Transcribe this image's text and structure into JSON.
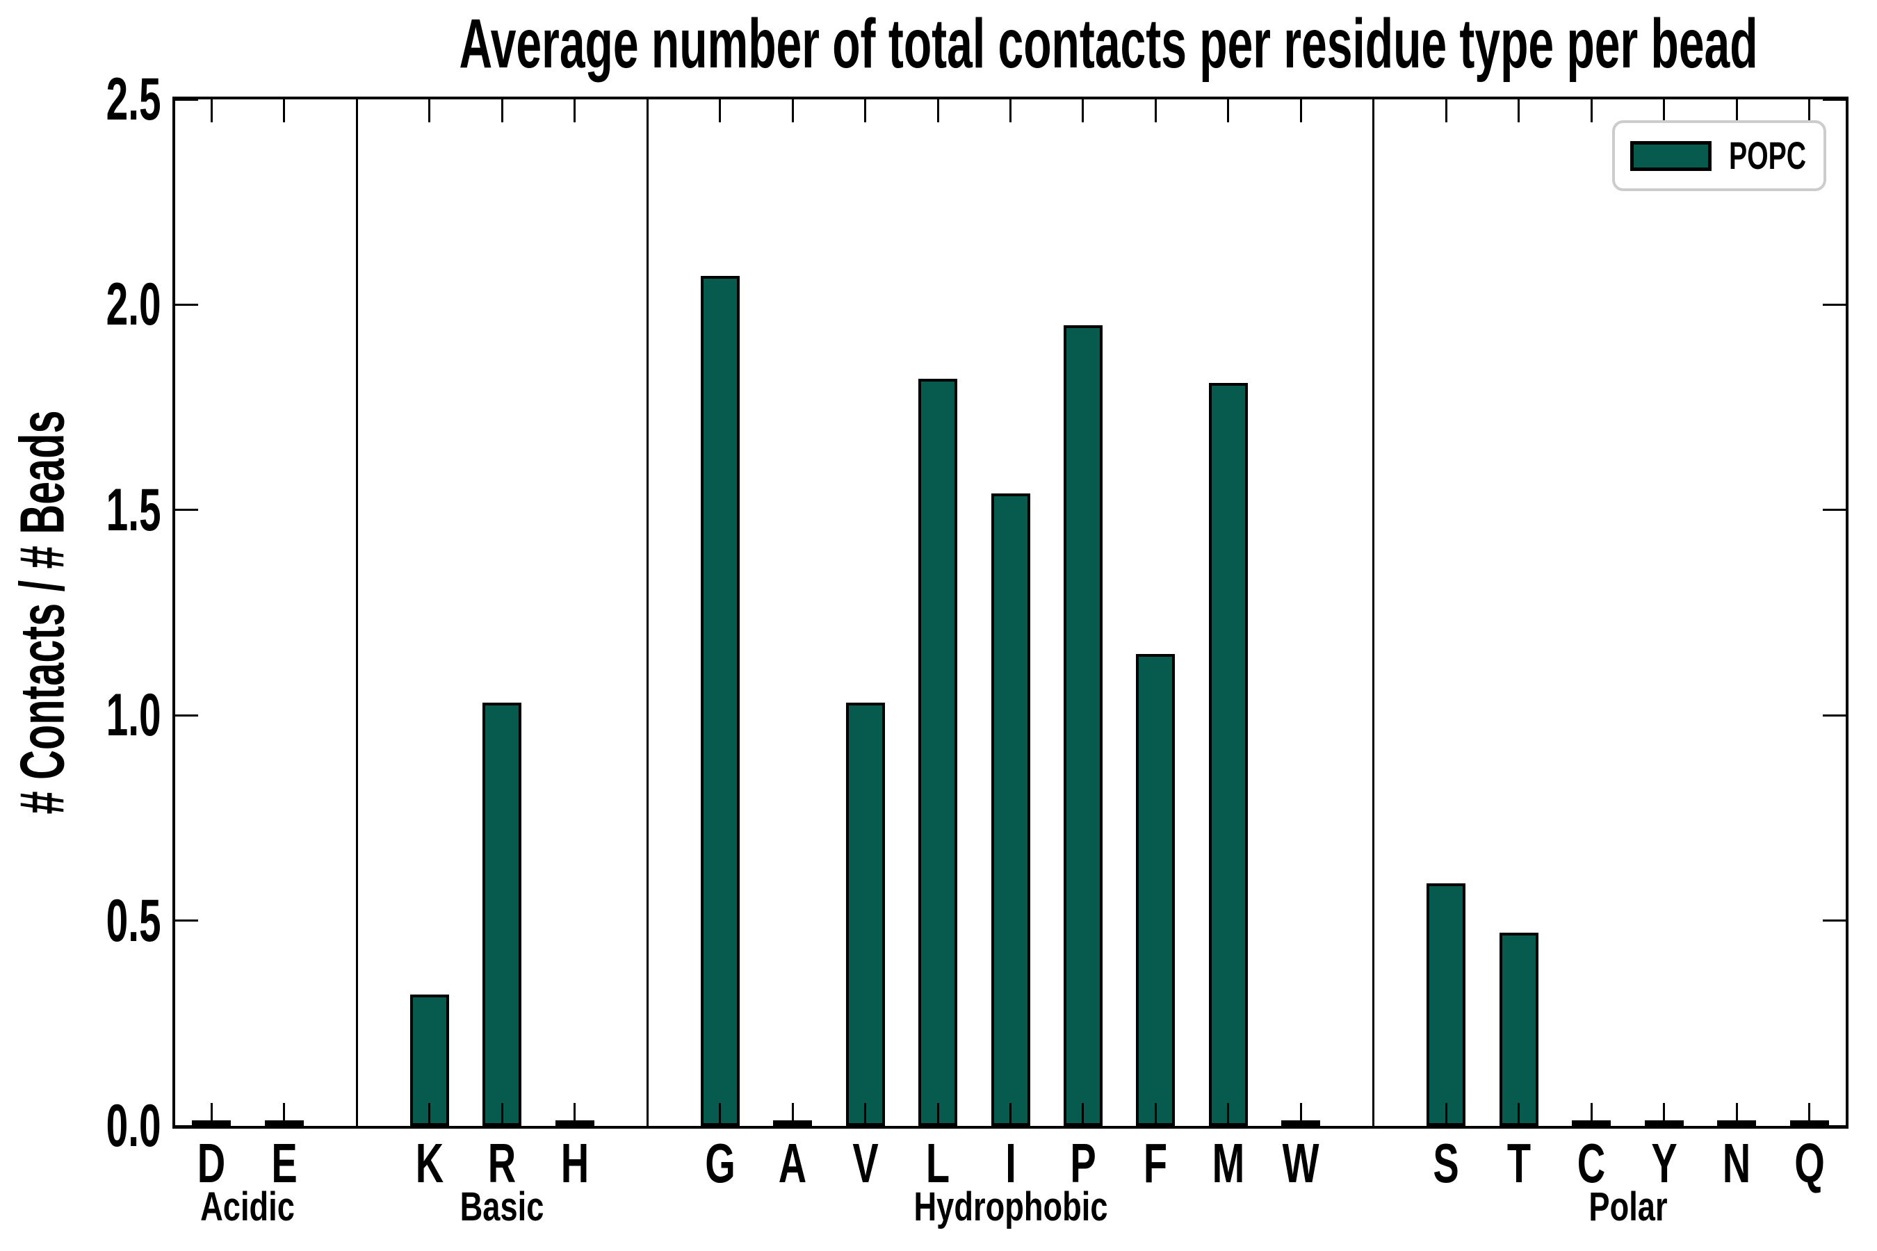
{
  "title": "Average number of total contacts per residue type per bead",
  "ylabel": "# Contacts / # Beads",
  "legend": {
    "label": "POPC",
    "swatch_color": "#065a4e"
  },
  "colors": {
    "bar_fill": "#065a4e",
    "bar_edge": "#000000",
    "axis": "#000000",
    "legend_border": "#cccccc",
    "background": "#ffffff"
  },
  "y_axis": {
    "ticks": [
      "0.0",
      "0.5",
      "1.0",
      "1.5",
      "2.0",
      "2.5"
    ]
  },
  "chart_data": {
    "type": "bar",
    "title": "Average number of total contacts per residue type per bead",
    "xlabel": "",
    "ylabel": "# Contacts / # Beads",
    "ylim": [
      0,
      2.5
    ],
    "grid": false,
    "legend_position": "upper right",
    "series_name": "POPC",
    "groups": [
      {
        "label": "Acidic",
        "categories": [
          "D",
          "E"
        ],
        "values": [
          0.01,
          0.01
        ]
      },
      {
        "label": "Basic",
        "categories": [
          "K",
          "R",
          "H"
        ],
        "values": [
          0.32,
          1.03,
          0.01
        ]
      },
      {
        "label": "Hydrophobic",
        "categories": [
          "G",
          "A",
          "V",
          "L",
          "I",
          "P",
          "F",
          "M",
          "W"
        ],
        "values": [
          2.07,
          0.01,
          1.03,
          1.82,
          1.54,
          1.95,
          1.15,
          1.81,
          0.01
        ]
      },
      {
        "label": "Polar",
        "categories": [
          "S",
          "T",
          "C",
          "Y",
          "N",
          "Q"
        ],
        "values": [
          0.59,
          0.47,
          0.01,
          0.01,
          0.01,
          0.01
        ]
      }
    ]
  }
}
